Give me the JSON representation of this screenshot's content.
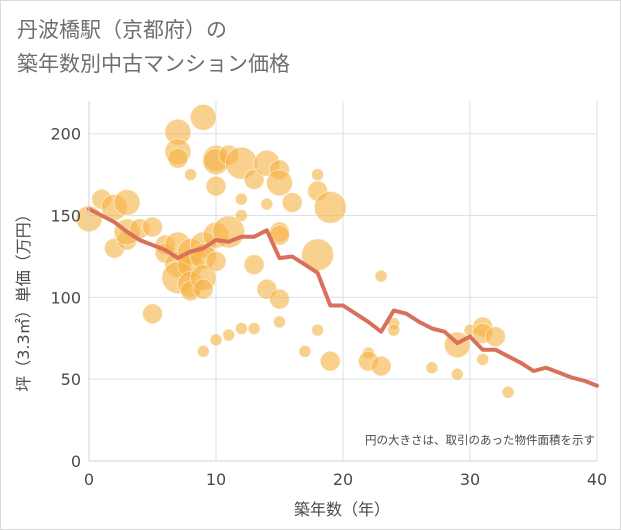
{
  "chart_data": {
    "type": "scatter",
    "title": "丹波橋駅（京都府）の\n築年数別中古マンション価格",
    "xlabel": "築年数（年）",
    "ylabel": "坪（3.3㎡）単価（万円）",
    "xlim": [
      0,
      40
    ],
    "ylim": [
      0,
      220
    ],
    "xticks": [
      "0",
      "10",
      "20",
      "30",
      "40"
    ],
    "yticks": [
      "0",
      "50",
      "100",
      "150",
      "200"
    ],
    "grid": true,
    "annotation": "円の大きさは、取引のあった物件面積を示す",
    "colors": {
      "bubble": "#f5b342",
      "line": "#d9705a",
      "grid": "#d7e2ea",
      "text": "#4a4a4a"
    },
    "series": [
      {
        "type": "bubble",
        "points": [
          {
            "x": 0,
            "y": 148,
            "s": 3
          },
          {
            "x": 1,
            "y": 160,
            "s": 2
          },
          {
            "x": 2,
            "y": 155,
            "s": 3
          },
          {
            "x": 2,
            "y": 130,
            "s": 2
          },
          {
            "x": 3,
            "y": 158,
            "s": 3
          },
          {
            "x": 3,
            "y": 135,
            "s": 2
          },
          {
            "x": 3,
            "y": 140,
            "s": 3
          },
          {
            "x": 4,
            "y": 142,
            "s": 2
          },
          {
            "x": 5,
            "y": 143,
            "s": 2
          },
          {
            "x": 5,
            "y": 90,
            "s": 2
          },
          {
            "x": 6,
            "y": 132,
            "s": 2
          },
          {
            "x": 6,
            "y": 127,
            "s": 2
          },
          {
            "x": 7,
            "y": 201,
            "s": 3
          },
          {
            "x": 7,
            "y": 189,
            "s": 3
          },
          {
            "x": 7,
            "y": 185,
            "s": 2
          },
          {
            "x": 7,
            "y": 132,
            "s": 3
          },
          {
            "x": 7,
            "y": 120,
            "s": 3
          },
          {
            "x": 7,
            "y": 112,
            "s": 4
          },
          {
            "x": 8,
            "y": 175,
            "s": 1
          },
          {
            "x": 8,
            "y": 128,
            "s": 3
          },
          {
            "x": 8,
            "y": 120,
            "s": 3
          },
          {
            "x": 8,
            "y": 108,
            "s": 3
          },
          {
            "x": 8,
            "y": 104,
            "s": 2
          },
          {
            "x": 9,
            "y": 210,
            "s": 3
          },
          {
            "x": 9,
            "y": 132,
            "s": 3
          },
          {
            "x": 9,
            "y": 125,
            "s": 3
          },
          {
            "x": 9,
            "y": 112,
            "s": 3
          },
          {
            "x": 9,
            "y": 105,
            "s": 2
          },
          {
            "x": 9,
            "y": 67,
            "s": 1
          },
          {
            "x": 10,
            "y": 185,
            "s": 3
          },
          {
            "x": 10,
            "y": 183,
            "s": 3
          },
          {
            "x": 10,
            "y": 168,
            "s": 2
          },
          {
            "x": 10,
            "y": 138,
            "s": 3
          },
          {
            "x": 10,
            "y": 122,
            "s": 2
          },
          {
            "x": 10,
            "y": 74,
            "s": 1
          },
          {
            "x": 11,
            "y": 140,
            "s": 4
          },
          {
            "x": 11,
            "y": 187,
            "s": 2
          },
          {
            "x": 11,
            "y": 77,
            "s": 1
          },
          {
            "x": 12,
            "y": 182,
            "s": 4
          },
          {
            "x": 12,
            "y": 160,
            "s": 1
          },
          {
            "x": 12,
            "y": 150,
            "s": 1
          },
          {
            "x": 12,
            "y": 81,
            "s": 1
          },
          {
            "x": 13,
            "y": 172,
            "s": 2
          },
          {
            "x": 13,
            "y": 120,
            "s": 2
          },
          {
            "x": 13,
            "y": 81,
            "s": 1
          },
          {
            "x": 14,
            "y": 182,
            "s": 3
          },
          {
            "x": 14,
            "y": 157,
            "s": 1
          },
          {
            "x": 14,
            "y": 105,
            "s": 2
          },
          {
            "x": 15,
            "y": 178,
            "s": 2
          },
          {
            "x": 15,
            "y": 170,
            "s": 3
          },
          {
            "x": 15,
            "y": 140,
            "s": 2
          },
          {
            "x": 15,
            "y": 138,
            "s": 2
          },
          {
            "x": 15,
            "y": 99,
            "s": 2
          },
          {
            "x": 15,
            "y": 85,
            "s": 1
          },
          {
            "x": 16,
            "y": 158,
            "s": 2
          },
          {
            "x": 17,
            "y": 67,
            "s": 1
          },
          {
            "x": 18,
            "y": 175,
            "s": 1
          },
          {
            "x": 18,
            "y": 165,
            "s": 2
          },
          {
            "x": 18,
            "y": 126,
            "s": 4
          },
          {
            "x": 18,
            "y": 80,
            "s": 1
          },
          {
            "x": 19,
            "y": 155,
            "s": 4
          },
          {
            "x": 19,
            "y": 61,
            "s": 2
          },
          {
            "x": 22,
            "y": 66,
            "s": 1
          },
          {
            "x": 22,
            "y": 61,
            "s": 2
          },
          {
            "x": 23,
            "y": 113,
            "s": 1
          },
          {
            "x": 23,
            "y": 58,
            "s": 2
          },
          {
            "x": 24,
            "y": 84,
            "s": 1
          },
          {
            "x": 24,
            "y": 80,
            "s": 1
          },
          {
            "x": 27,
            "y": 57,
            "s": 1
          },
          {
            "x": 29,
            "y": 71,
            "s": 3
          },
          {
            "x": 29,
            "y": 53,
            "s": 1
          },
          {
            "x": 30,
            "y": 80,
            "s": 1
          },
          {
            "x": 31,
            "y": 82,
            "s": 2
          },
          {
            "x": 31,
            "y": 78,
            "s": 2
          },
          {
            "x": 31,
            "y": 62,
            "s": 1
          },
          {
            "x": 32,
            "y": 76,
            "s": 2
          },
          {
            "x": 33,
            "y": 42,
            "s": 1
          }
        ]
      },
      {
        "type": "line",
        "x": [
          0,
          1,
          2,
          3,
          4,
          5,
          6,
          7,
          8,
          9,
          10,
          11,
          12,
          13,
          14,
          15,
          16,
          17,
          18,
          19,
          20,
          21,
          22,
          23,
          24,
          25,
          26,
          27,
          28,
          29,
          30,
          31,
          32,
          33,
          34,
          35,
          36,
          37,
          38,
          39,
          40
        ],
        "y": [
          154,
          150,
          146,
          140,
          135,
          132,
          129,
          124,
          128,
          130,
          135,
          134,
          137,
          137,
          141,
          124,
          125,
          120,
          115,
          95,
          95,
          90,
          85,
          79,
          92,
          90,
          85,
          81,
          79,
          72,
          76,
          68,
          68,
          64,
          60,
          55,
          57,
          54,
          51,
          49,
          46
        ]
      }
    ]
  }
}
